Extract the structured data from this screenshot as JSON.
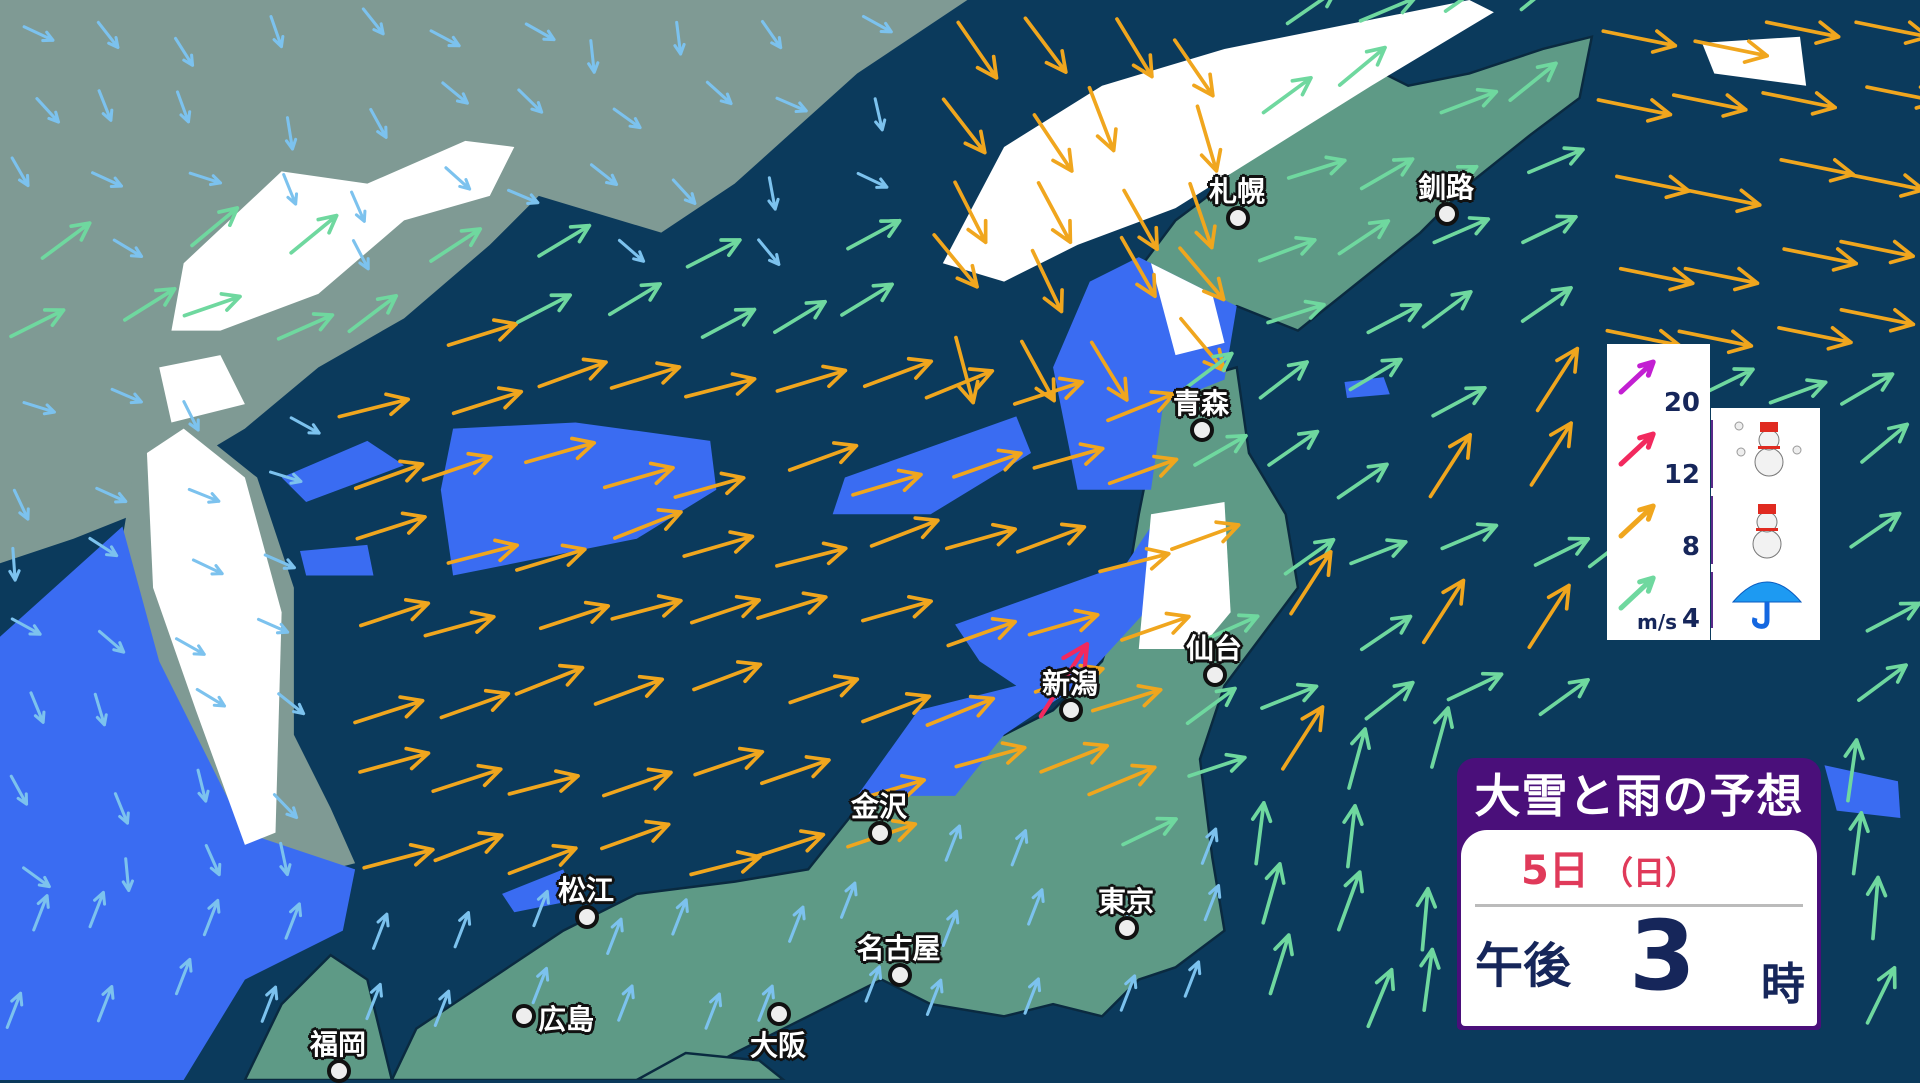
{
  "title": "大雪と雨の予想",
  "forecast_time": {
    "day": "5日",
    "weekday": "（日）",
    "period": "午後",
    "hour": "3",
    "hour_suffix": "時"
  },
  "legend": {
    "unit": "m/s",
    "wind_speeds": [
      {
        "value": "20",
        "color": "#c21fd2"
      },
      {
        "value": "12",
        "color": "#f2295e"
      },
      {
        "value": "8",
        "color": "#f0a61e"
      },
      {
        "value": "4",
        "color": "#6fd89f"
      },
      {
        "value": "",
        "color": "#7cc2ee"
      }
    ],
    "precip_icons": [
      "heavy-snow-icon",
      "snow-icon",
      "rain-icon"
    ]
  },
  "colors": {
    "sea": "#0b3a5c",
    "japan_land": "#5e9a86",
    "continent": "#7f9a94",
    "rain": "#3a6cf2",
    "snow": "#ffffff"
  },
  "cities": [
    {
      "name": "札幌"
    },
    {
      "name": "釧路"
    },
    {
      "name": "青森"
    },
    {
      "name": "仙台"
    },
    {
      "name": "新潟"
    },
    {
      "name": "金沢"
    },
    {
      "name": "東京"
    },
    {
      "name": "名古屋"
    },
    {
      "name": "松江"
    },
    {
      "name": "広島"
    },
    {
      "name": "大阪"
    },
    {
      "name": "福岡"
    }
  ]
}
